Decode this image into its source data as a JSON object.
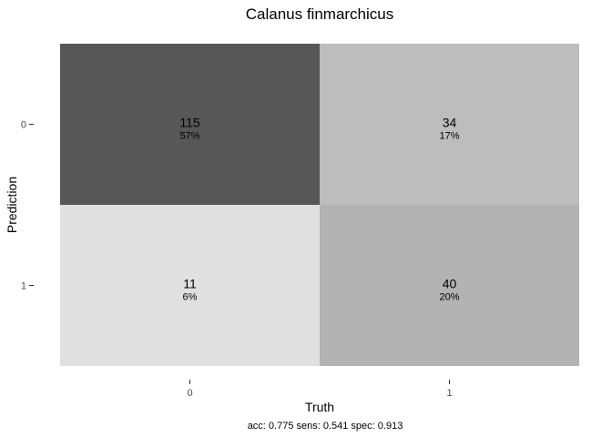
{
  "chart_data": {
    "type": "heatmap",
    "title": "Calanus finmarchicus",
    "xlabel": "Truth",
    "ylabel": "Prediction",
    "x_categories": [
      "0",
      "1"
    ],
    "y_categories": [
      "0",
      "1"
    ],
    "cells": [
      {
        "truth": "0",
        "prediction": "0",
        "count": 115,
        "percent": "57%",
        "color": "#575757"
      },
      {
        "truth": "1",
        "prediction": "0",
        "count": 34,
        "percent": "17%",
        "color": "#bdbdbd"
      },
      {
        "truth": "0",
        "prediction": "1",
        "count": 11,
        "percent": "6%",
        "color": "#e0e0e0"
      },
      {
        "truth": "1",
        "prediction": "1",
        "count": 40,
        "percent": "20%",
        "color": "#b3b3b3"
      }
    ],
    "caption": "acc: 0.775  sens: 0.541  spec: 0.913",
    "grid": false,
    "legend": "none"
  }
}
